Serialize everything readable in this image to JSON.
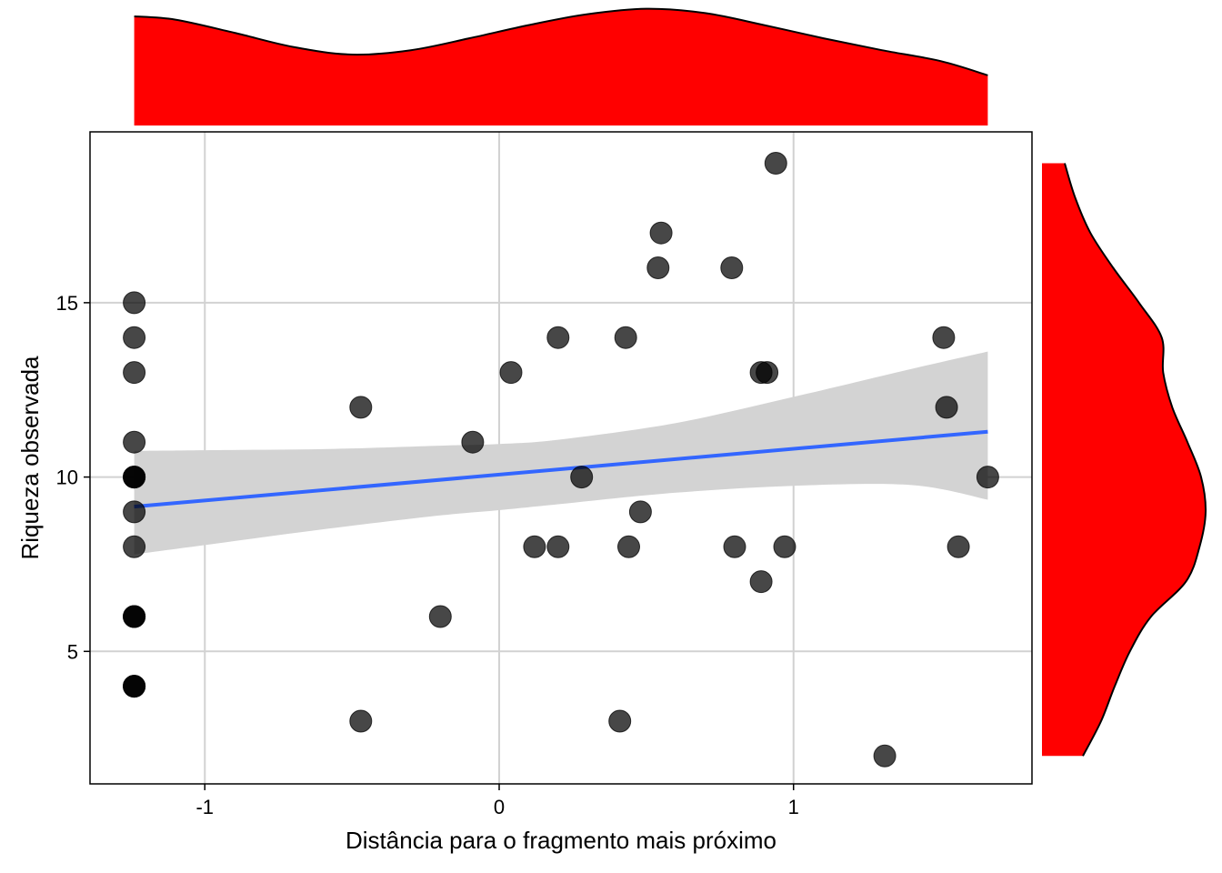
{
  "chart_data": {
    "type": "scatter",
    "title": "",
    "xlabel": "Distância para o fragmento mais próximo",
    "ylabel": "Riqueza observada",
    "xlim": [
      -1.39,
      1.81
    ],
    "ylim": [
      1.2,
      19.9
    ],
    "x_ticks": [
      {
        "value": -1,
        "label": "-1"
      },
      {
        "value": 0,
        "label": "0"
      },
      {
        "value": 1,
        "label": "1"
      }
    ],
    "y_ticks": [
      {
        "value": 5,
        "label": "5"
      },
      {
        "value": 10,
        "label": "10"
      },
      {
        "value": 15,
        "label": "15"
      }
    ],
    "grid": true,
    "legend": "none",
    "point_color": "#000000",
    "point_opacity": 0.72,
    "fit_line_color": "#3366ff",
    "ci_band_color": "#d3d3d3",
    "marginal_fill_color": "#ff0000",
    "marginal_outline_color": "#000000",
    "points": [
      {
        "x": -1.24,
        "y": 15
      },
      {
        "x": -1.24,
        "y": 14
      },
      {
        "x": -1.24,
        "y": 13
      },
      {
        "x": -1.24,
        "y": 11
      },
      {
        "x": -1.24,
        "y": 10
      },
      {
        "x": -1.24,
        "y": 10
      },
      {
        "x": -1.24,
        "y": 10
      },
      {
        "x": -1.24,
        "y": 9
      },
      {
        "x": -1.24,
        "y": 8
      },
      {
        "x": -1.24,
        "y": 6
      },
      {
        "x": -1.24,
        "y": 6
      },
      {
        "x": -1.24,
        "y": 6
      },
      {
        "x": -1.24,
        "y": 4
      },
      {
        "x": -1.24,
        "y": 4
      },
      {
        "x": -1.24,
        "y": 4
      },
      {
        "x": -0.47,
        "y": 12
      },
      {
        "x": -0.47,
        "y": 3
      },
      {
        "x": -0.2,
        "y": 6
      },
      {
        "x": -0.09,
        "y": 11
      },
      {
        "x": 0.04,
        "y": 13
      },
      {
        "x": 0.12,
        "y": 8
      },
      {
        "x": 0.2,
        "y": 14
      },
      {
        "x": 0.2,
        "y": 8
      },
      {
        "x": 0.28,
        "y": 10
      },
      {
        "x": 0.41,
        "y": 3
      },
      {
        "x": 0.43,
        "y": 14
      },
      {
        "x": 0.44,
        "y": 8
      },
      {
        "x": 0.48,
        "y": 9
      },
      {
        "x": 0.54,
        "y": 16
      },
      {
        "x": 0.55,
        "y": 17
      },
      {
        "x": 0.79,
        "y": 16
      },
      {
        "x": 0.8,
        "y": 8
      },
      {
        "x": 0.89,
        "y": 7
      },
      {
        "x": 0.89,
        "y": 13
      },
      {
        "x": 0.91,
        "y": 13
      },
      {
        "x": 0.94,
        "y": 19
      },
      {
        "x": 0.97,
        "y": 8
      },
      {
        "x": 1.31,
        "y": 2
      },
      {
        "x": 1.51,
        "y": 14
      },
      {
        "x": 1.52,
        "y": 12
      },
      {
        "x": 1.56,
        "y": 8
      },
      {
        "x": 1.66,
        "y": 10
      }
    ],
    "fit_line": {
      "x": [
        -1.24,
        1.66
      ],
      "y": [
        9.15,
        11.3
      ]
    },
    "confidence_band": {
      "x": [
        -1.24,
        -1.0,
        -0.6,
        -0.2,
        0.0,
        0.2,
        0.6,
        1.0,
        1.4,
        1.66
      ],
      "upper": [
        10.75,
        10.77,
        10.8,
        10.9,
        10.95,
        11.07,
        11.55,
        12.3,
        13.1,
        13.6
      ],
      "lower": [
        7.78,
        8.05,
        8.5,
        8.9,
        9.05,
        9.22,
        9.55,
        9.75,
        9.77,
        9.35
      ]
    },
    "marginal_x_density": {
      "x": [
        -1.24,
        -1.1,
        -0.9,
        -0.7,
        -0.5,
        -0.3,
        -0.1,
        0.1,
        0.3,
        0.5,
        0.7,
        0.9,
        1.1,
        1.3,
        1.5,
        1.66
      ],
      "density": [
        1.0,
        0.97,
        0.85,
        0.72,
        0.65,
        0.69,
        0.8,
        0.92,
        1.02,
        1.07,
        1.03,
        0.92,
        0.8,
        0.69,
        0.59,
        0.46
      ]
    },
    "marginal_y_density": {
      "y": [
        2,
        3,
        4,
        5,
        6,
        7,
        8,
        9,
        10,
        11,
        12,
        13,
        14,
        15,
        16,
        17,
        18,
        19
      ],
      "density": [
        0.27,
        0.39,
        0.48,
        0.58,
        0.72,
        0.95,
        1.04,
        1.08,
        1.05,
        0.96,
        0.86,
        0.8,
        0.79,
        0.64,
        0.47,
        0.32,
        0.22,
        0.15
      ]
    }
  }
}
